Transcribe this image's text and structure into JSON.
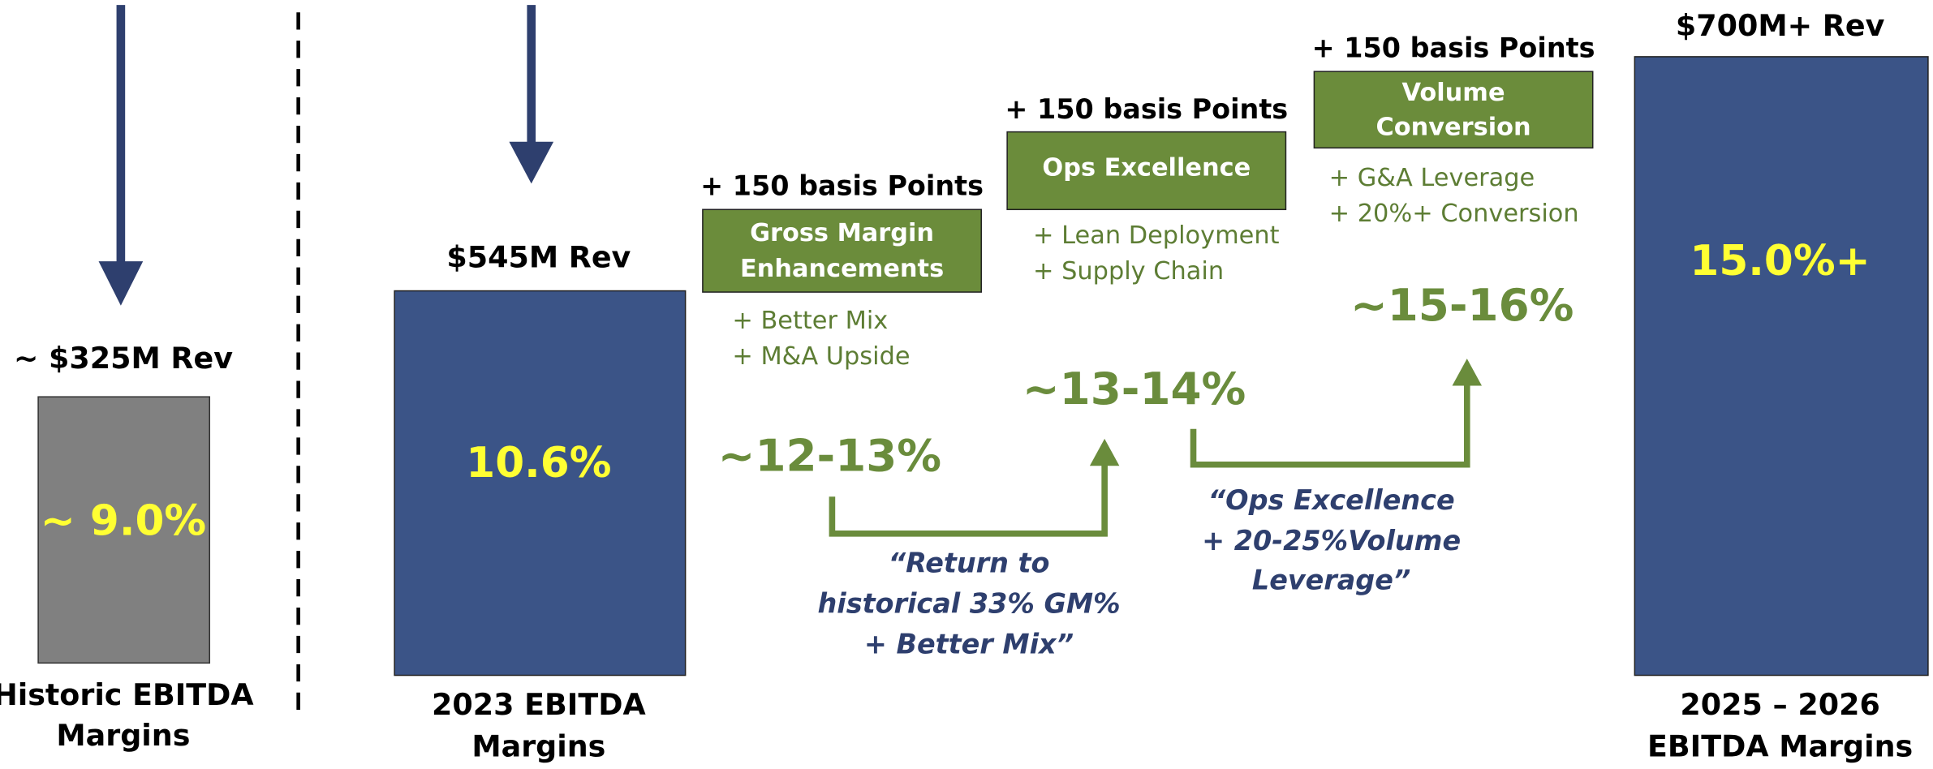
{
  "columns": [
    {
      "rev": "~ $325M Rev",
      "margin": "~ 9.0%",
      "label": [
        "Historic EBITDA",
        "Margins"
      ]
    },
    {
      "rev": "$545M Rev",
      "margin": "10.6%",
      "label": [
        "2023 EBITDA",
        "Margins"
      ]
    },
    {
      "rev": "$700M+ Rev",
      "margin": "15.0%+",
      "label": [
        "2025 – 2026",
        "EBITDA Margins"
      ]
    }
  ],
  "steps": [
    {
      "header": "+ 150 basis Points",
      "box": [
        "Gross Margin",
        "Enhancements"
      ],
      "bullets": [
        "+ Better Mix",
        "+ M&A Upside"
      ],
      "result": "~12-13%"
    },
    {
      "header": "+ 150 basis Points",
      "box": [
        "Ops Excellence"
      ],
      "bullets": [
        "+ Lean Deployment",
        "+ Supply Chain"
      ],
      "result": "~13-14%"
    },
    {
      "header": "+ 150 basis Points",
      "box": [
        "Volume",
        "Conversion"
      ],
      "bullets": [
        "+ G&A Leverage",
        "+ 20%+ Conversion"
      ],
      "result": "~15-16%"
    }
  ],
  "notes": [
    [
      "“Return to",
      "historical 33% GM%",
      "+ Better Mix”"
    ],
    [
      "“Ops Excellence",
      "+ 20-25%Volume",
      "Leverage”"
    ]
  ]
}
